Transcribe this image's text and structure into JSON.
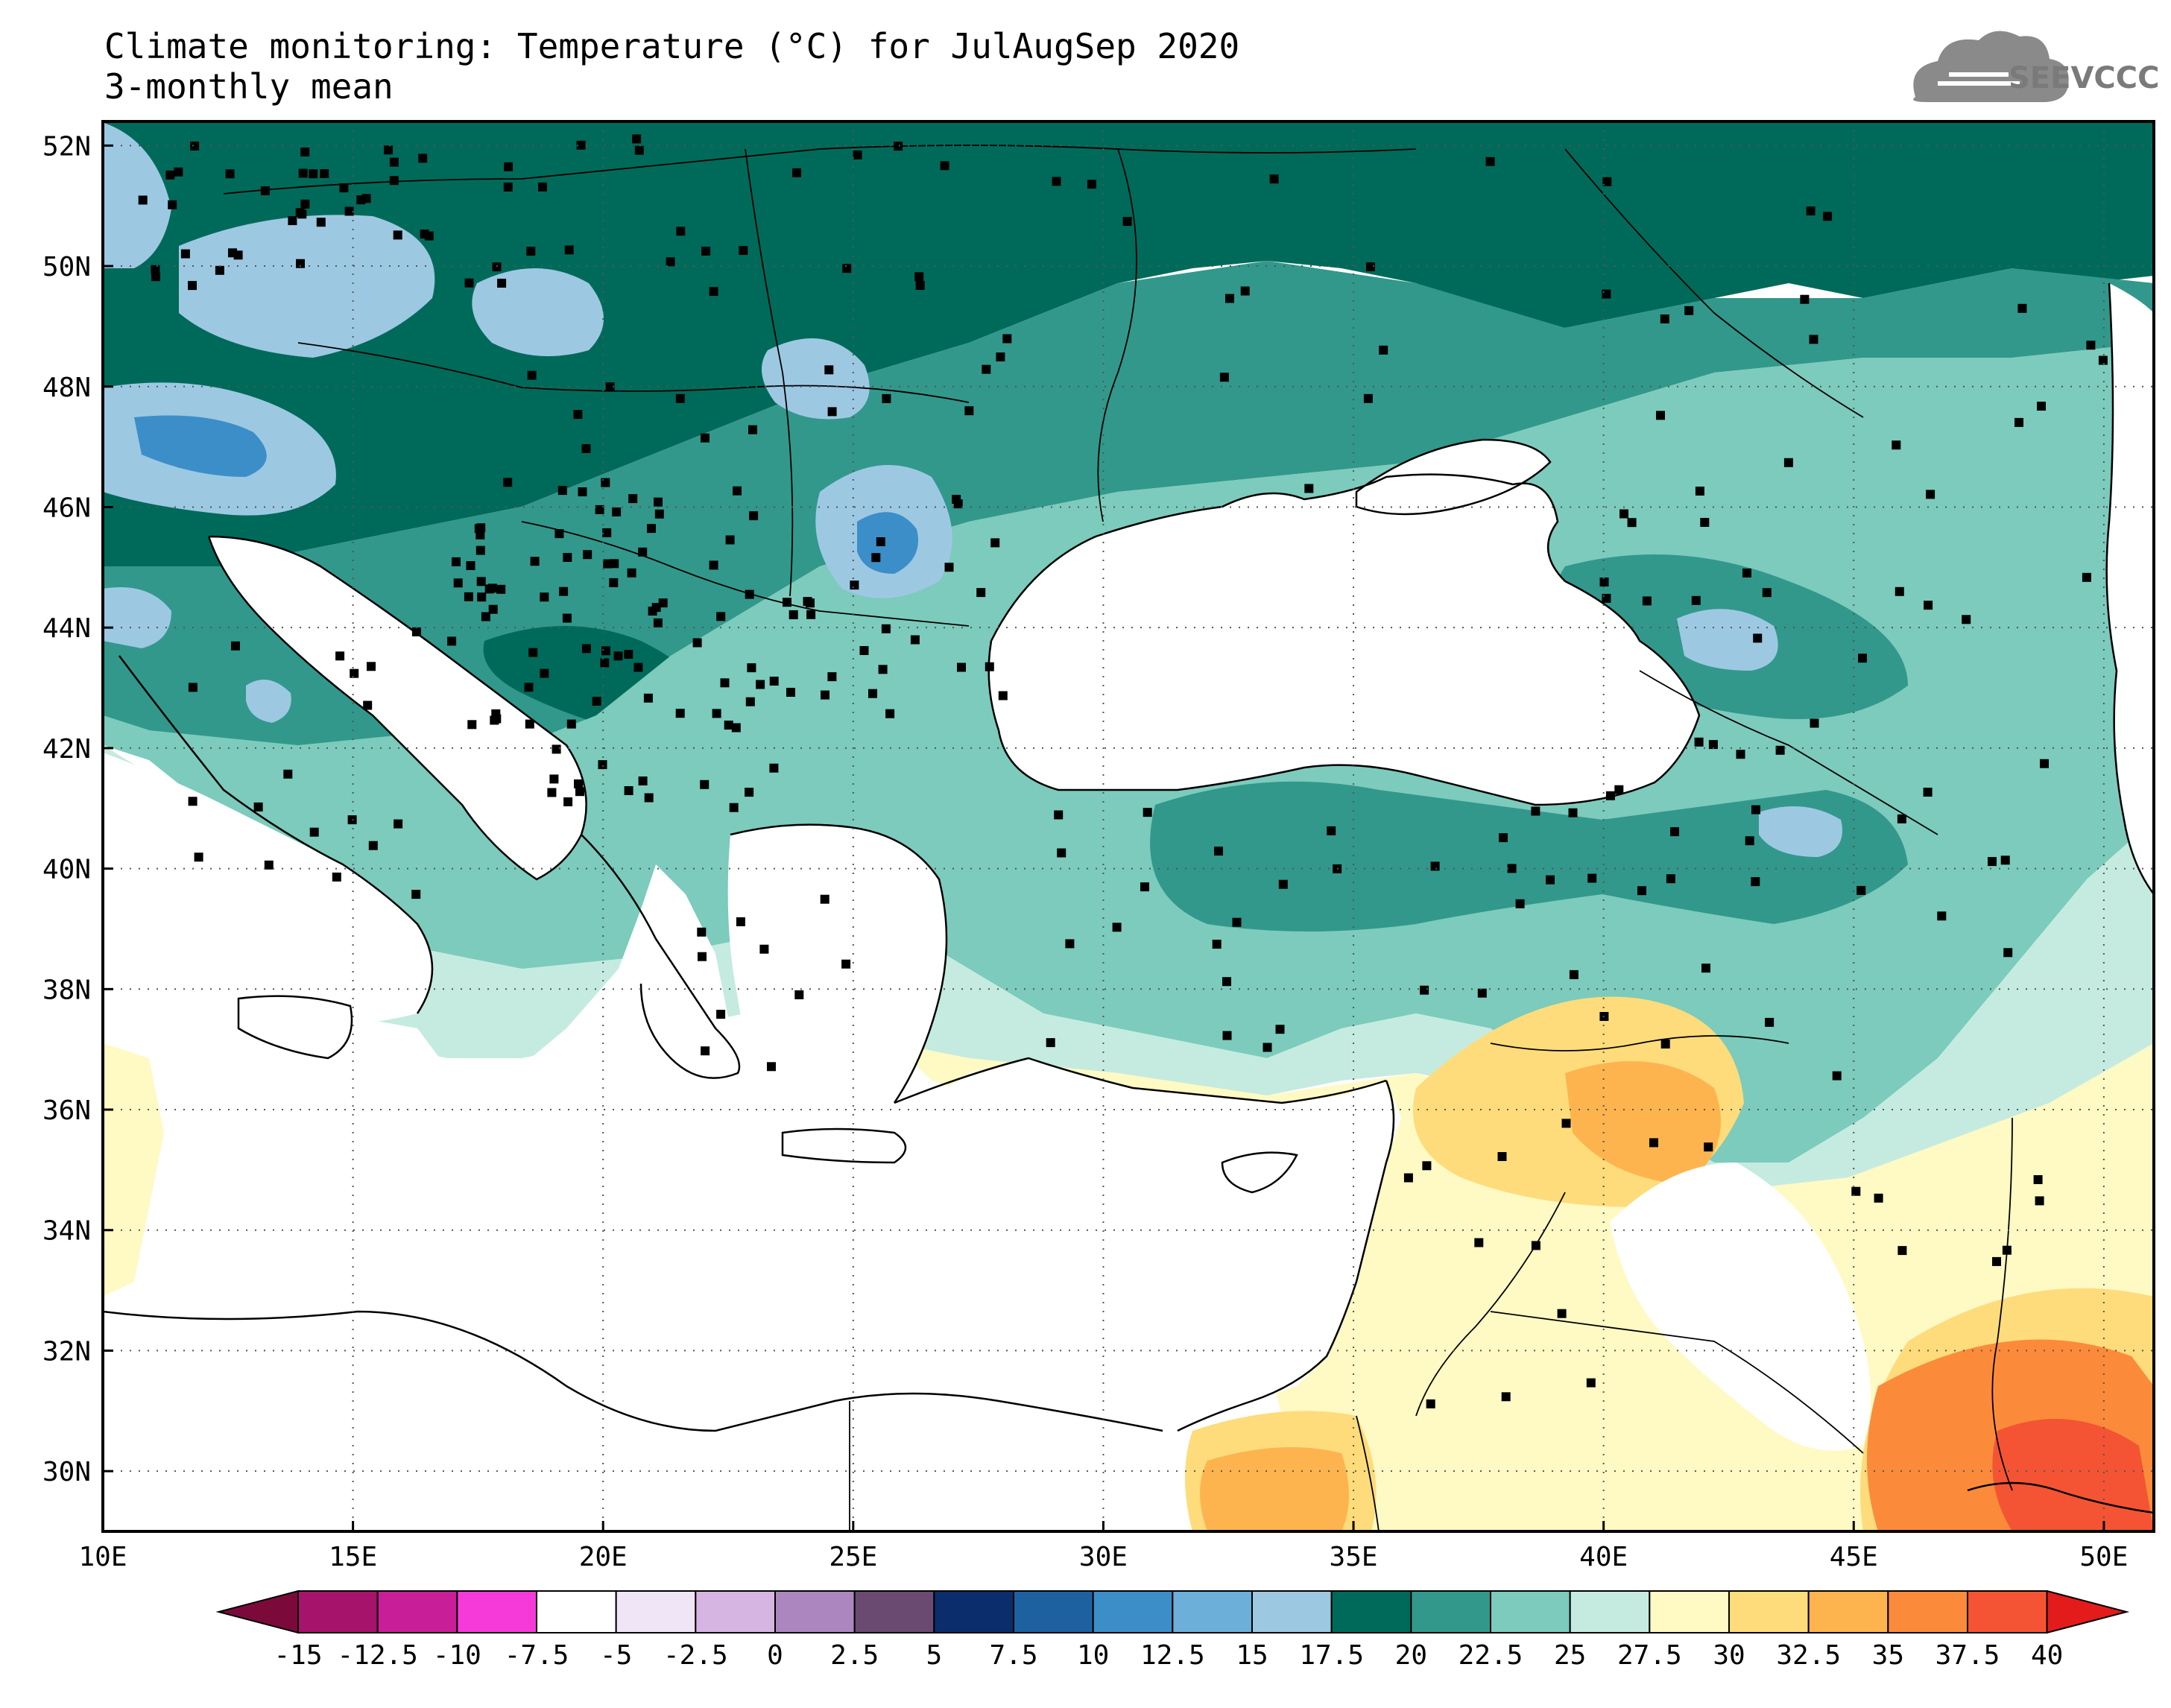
{
  "title": {
    "line1": "Climate monitoring: Temperature (°C) for JulAugSep 2020",
    "line2": "3-monthly mean"
  },
  "logo": {
    "text": "SEEVCCC",
    "icon": "cloud-icon"
  },
  "map": {
    "lon_ticks": [
      "10E",
      "15E",
      "20E",
      "25E",
      "30E",
      "35E",
      "40E",
      "45E",
      "50E"
    ],
    "lat_ticks": [
      "52N",
      "50N",
      "48N",
      "46N",
      "44N",
      "42N",
      "40N",
      "38N",
      "36N",
      "34N",
      "32N",
      "30N"
    ],
    "lon_range": [
      10,
      51
    ],
    "lat_range": [
      29,
      52.4
    ],
    "grid": "dotted"
  },
  "colorbar": {
    "labels": [
      "-15",
      "-12.5",
      "-10",
      "-7.5",
      "-5",
      "-2.5",
      "0",
      "2.5",
      "5",
      "7.5",
      "10",
      "12.5",
      "15",
      "17.5",
      "20",
      "22.5",
      "25",
      "27.5",
      "30",
      "32.5",
      "35",
      "37.5",
      "40"
    ],
    "colors": [
      "#7b0a3b",
      "#a6136b",
      "#c81e97",
      "#f53ad9",
      "#ffffff",
      "#efe5f6",
      "#d7b5e2",
      "#ac87bf",
      "#6a4a70",
      "#0b2d6b",
      "#1e61a0",
      "#3c8ec9",
      "#6cafd9",
      "#9dc8e2",
      "#006a5a",
      "#32988b",
      "#7ccbbc",
      "#c5ebe0",
      "#fff9c4",
      "#fedc7b",
      "#fdb44f",
      "#fb8b3a",
      "#f45433",
      "#e31b1b"
    ]
  }
}
